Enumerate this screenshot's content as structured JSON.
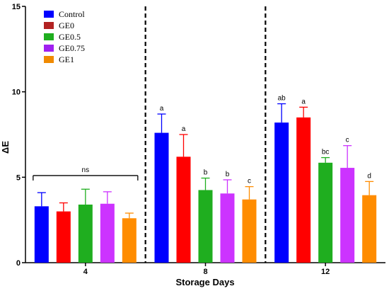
{
  "chart_data": {
    "type": "bar",
    "xlabel": "Storage Days",
    "ylabel": "ΔE",
    "ylim": [
      0,
      15
    ],
    "yticks": [
      "0",
      "5",
      "10",
      "15"
    ],
    "categories": [
      "4",
      "8",
      "12"
    ],
    "legend_position": "top-left",
    "group_separators": "dashed",
    "series": [
      {
        "name": "Control",
        "color": "#0000FF",
        "values": [
          3.3,
          7.6,
          8.2
        ],
        "errors": [
          0.8,
          1.1,
          1.1
        ],
        "labels": [
          "",
          "a",
          "ab"
        ]
      },
      {
        "name": "GE0",
        "color": "#B22222",
        "values": [
          3.0,
          6.2,
          8.5
        ],
        "errors": [
          0.5,
          1.3,
          0.6
        ],
        "labels": [
          "",
          "a",
          "a"
        ]
      },
      {
        "name": "GE0.5",
        "color": "#1FAE1F",
        "values": [
          3.4,
          4.25,
          5.85
        ],
        "errors": [
          0.9,
          0.7,
          0.3
        ],
        "labels": [
          "",
          "b",
          "bc"
        ]
      },
      {
        "name": "GE0.75",
        "color": "#A020F0",
        "values": [
          3.45,
          4.05,
          5.55
        ],
        "errors": [
          0.7,
          0.8,
          1.3
        ],
        "labels": [
          "",
          "b",
          "c"
        ]
      },
      {
        "name": "GE1",
        "color": "#F08A00",
        "values": [
          2.6,
          3.7,
          3.95
        ],
        "errors": [
          0.3,
          0.75,
          0.8
        ],
        "labels": [
          "",
          "c",
          "d"
        ]
      }
    ],
    "bar_display_colors": [
      "#0000FF",
      "#FF0000",
      "#1FAE1F",
      "#CC33FF",
      "#FF8C00"
    ],
    "annotation": {
      "text": "ns",
      "category": "4",
      "y": 5.1
    }
  }
}
